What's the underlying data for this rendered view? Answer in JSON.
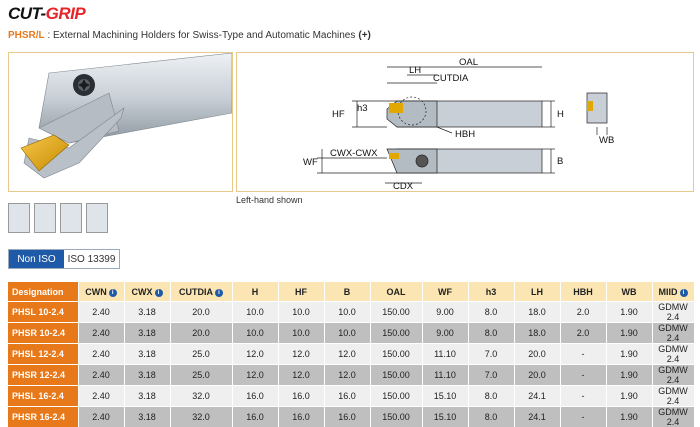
{
  "brand": {
    "part1": "CUT-",
    "part2": "GRIP"
  },
  "subtitle": {
    "code": "PHSR/L",
    "text": " : External Machining Holders for Swiss-Type and Automatic Machines",
    "plus": "(+)"
  },
  "colors": {
    "accent": "#e8791b",
    "brand_red": "#e8242b",
    "header_bg": "#fbe6b3",
    "tab_active": "#1f5aa8",
    "insert_gold": "#e0a800",
    "tool_gray": "#c8cfd6"
  },
  "caption": "Left-hand shown",
  "dimensions": {
    "oal": "OAL",
    "lh": "LH",
    "cutdia": "CUTDIA",
    "hf": "HF",
    "h3": "h3",
    "hbh": "HBH",
    "h": "H",
    "wf": "WF",
    "cwx_cwx": "CWX-CWX",
    "cdx": "CDX",
    "b": "B",
    "wb": "WB"
  },
  "tabs": [
    {
      "label": "Non ISO",
      "active": true
    },
    {
      "label": "ISO 13399",
      "active": false
    }
  ],
  "table": {
    "headers": [
      {
        "label": "Designation",
        "info": false
      },
      {
        "label": "CWN",
        "info": true
      },
      {
        "label": "CWX",
        "info": true
      },
      {
        "label": "CUTDIA",
        "info": true
      },
      {
        "label": "H",
        "info": false
      },
      {
        "label": "HF",
        "info": false
      },
      {
        "label": "B",
        "info": false
      },
      {
        "label": "OAL",
        "info": false
      },
      {
        "label": "WF",
        "info": false
      },
      {
        "label": "h3",
        "info": false
      },
      {
        "label": "LH",
        "info": false
      },
      {
        "label": "HBH",
        "info": false
      },
      {
        "label": "WB",
        "info": false
      },
      {
        "label": "MIID",
        "info": true
      }
    ],
    "rows": [
      [
        "PHSL 10-2.4",
        "2.40",
        "3.18",
        "20.0",
        "10.0",
        "10.0",
        "10.0",
        "150.00",
        "9.00",
        "8.0",
        "18.0",
        "2.0",
        "1.90",
        "GDMW 2.4"
      ],
      [
        "PHSR 10-2.4",
        "2.40",
        "3.18",
        "20.0",
        "10.0",
        "10.0",
        "10.0",
        "150.00",
        "9.00",
        "8.0",
        "18.0",
        "2.0",
        "1.90",
        "GDMW 2.4"
      ],
      [
        "PHSL 12-2.4",
        "2.40",
        "3.18",
        "25.0",
        "12.0",
        "12.0",
        "12.0",
        "150.00",
        "11.10",
        "7.0",
        "20.0",
        "-",
        "1.90",
        "GDMW 2.4"
      ],
      [
        "PHSR 12-2.4",
        "2.40",
        "3.18",
        "25.0",
        "12.0",
        "12.0",
        "12.0",
        "150.00",
        "11.10",
        "7.0",
        "20.0",
        "-",
        "1.90",
        "GDMW 2.4"
      ],
      [
        "PHSL 16-2.4",
        "2.40",
        "3.18",
        "32.0",
        "16.0",
        "16.0",
        "16.0",
        "150.00",
        "15.10",
        "8.0",
        "24.1",
        "-",
        "1.90",
        "GDMW 2.4"
      ],
      [
        "PHSR 16-2.4",
        "2.40",
        "3.18",
        "32.0",
        "16.0",
        "16.0",
        "16.0",
        "150.00",
        "15.10",
        "8.0",
        "24.1",
        "-",
        "1.90",
        "GDMW 2.4"
      ]
    ]
  }
}
